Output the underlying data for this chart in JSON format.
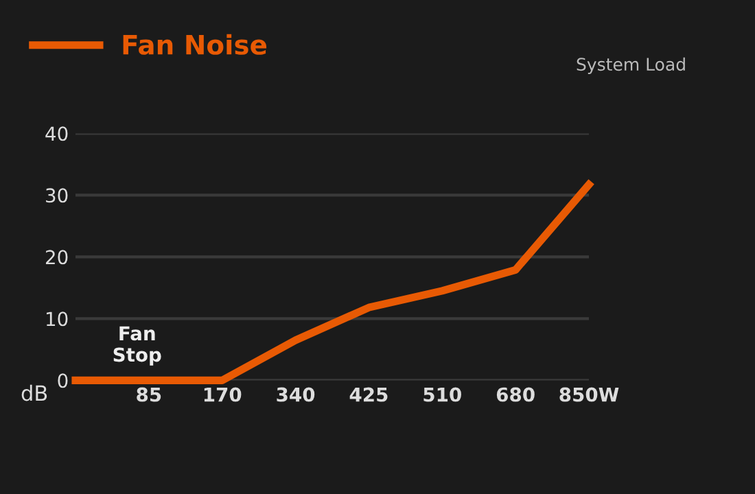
{
  "chart_data": {
    "type": "line",
    "ylabel": "dB",
    "categories": [
      null,
      "85",
      "170",
      "340",
      "425",
      "510",
      "680",
      "850W"
    ],
    "series": [
      {
        "name": "Fan Noise",
        "color": "#e85a04",
        "values": [
          0,
          0,
          0,
          6.5,
          11.8,
          14.5,
          17.9,
          31.7
        ]
      }
    ],
    "ylim": [
      0,
      40
    ],
    "yticks": [
      0,
      10,
      20,
      30,
      40
    ],
    "grid": "y",
    "legend": "top left",
    "marker": "none",
    "line_style": "solid",
    "annotations": [
      "Fan\nStop",
      "System Load"
    ]
  }
}
